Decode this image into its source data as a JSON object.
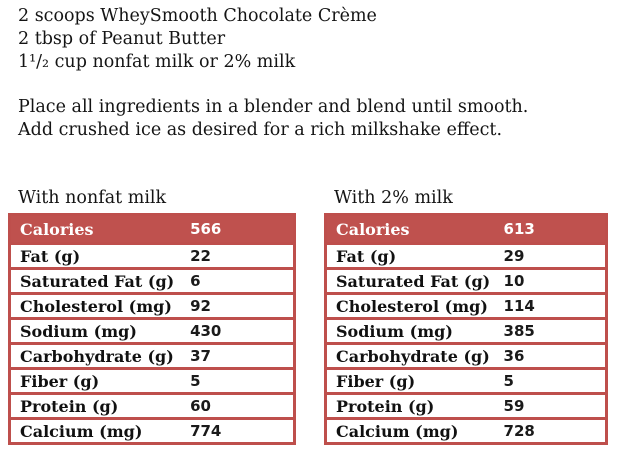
{
  "recipe": {
    "ingredients": [
      "2 scoops WheySmooth Chocolate Crème",
      "2 tbsp of Peanut Butter",
      "1¹/₂ cup nonfat milk or 2% milk"
    ],
    "instructions": [
      "Place all ingredients in a blender and blend until smooth.",
      "Add crushed ice as desired for a rich milkshake effect."
    ]
  },
  "tables": [
    {
      "caption": "With nonfat milk",
      "header": {
        "label": "Calories",
        "value": "566"
      },
      "rows": [
        {
          "label": "Fat (g)",
          "value": "22"
        },
        {
          "label": "Saturated Fat (g)",
          "value": "6"
        },
        {
          "label": "Cholesterol (mg)",
          "value": "92"
        },
        {
          "label": "Sodium (mg)",
          "value": "430"
        },
        {
          "label": "Carbohydrate (g)",
          "value": "37"
        },
        {
          "label": "Fiber (g)",
          "value": "5"
        },
        {
          "label": "Protein (g)",
          "value": "60"
        },
        {
          "label": "Calcium (mg)",
          "value": "774"
        }
      ]
    },
    {
      "caption": "With 2% milk",
      "header": {
        "label": "Calories",
        "value": "613"
      },
      "rows": [
        {
          "label": "Fat (g)",
          "value": "29"
        },
        {
          "label": "Saturated Fat (g)",
          "value": "10"
        },
        {
          "label": "Cholesterol (mg)",
          "value": "114"
        },
        {
          "label": "Sodium (mg)",
          "value": "385"
        },
        {
          "label": "Carbohydrate (g)",
          "value": "36"
        },
        {
          "label": "Fiber (g)",
          "value": "5"
        },
        {
          "label": "Protein (g)",
          "value": "59"
        },
        {
          "label": "Calcium (mg)",
          "value": "728"
        }
      ]
    }
  ],
  "colors": {
    "accent_red": "#BF514E",
    "text": "#141414"
  }
}
